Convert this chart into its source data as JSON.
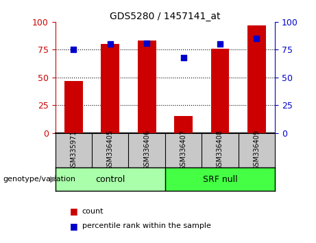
{
  "title": "GDS5280 / 1457141_at",
  "samples": [
    "GSM335971",
    "GSM336405",
    "GSM336406",
    "GSM336407",
    "GSM336408",
    "GSM336409"
  ],
  "count_values": [
    47,
    80,
    83,
    15,
    76,
    97
  ],
  "percentile_values": [
    75,
    80,
    81,
    68,
    80,
    85
  ],
  "group_control_color": "#AAFFAA",
  "group_srf_color": "#44FF44",
  "group_control_label": "control",
  "group_srf_label": "SRF null",
  "bar_color": "#CC0000",
  "dot_color": "#0000CC",
  "ylim": [
    0,
    100
  ],
  "yticks": [
    0,
    25,
    50,
    75,
    100
  ],
  "grid_lines": [
    25,
    50,
    75
  ],
  "left_axis_color": "#CC0000",
  "right_axis_color": "#0000CC",
  "background_color": "#FFFFFF",
  "label_bg": "#C8C8C8",
  "genotype_label": "genotype/variation",
  "legend_count": "count",
  "legend_percentile": "percentile rank within the sample",
  "bar_width": 0.5,
  "dot_size": 30,
  "title_fontsize": 10,
  "tick_fontsize": 9,
  "sample_fontsize": 7,
  "group_fontsize": 9,
  "legend_fontsize": 8,
  "genotype_fontsize": 8
}
